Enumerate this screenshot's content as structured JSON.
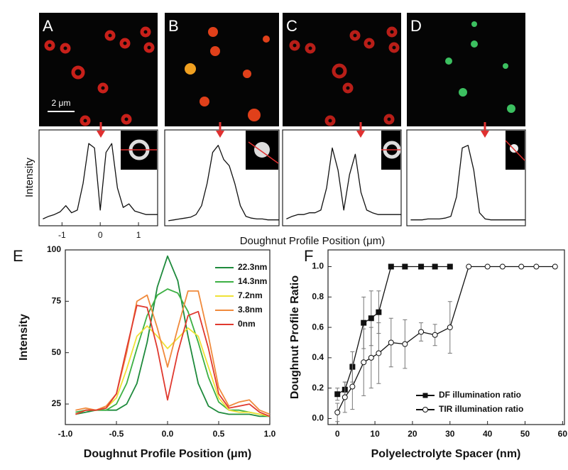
{
  "chart_data": [
    {
      "type": "line",
      "panel": "A",
      "scale_bar": "2 μm",
      "ylabel": "Intensity",
      "xlabel": "Doughnut Profile Position (μm)",
      "x": [
        -1.5,
        -1.35,
        -1.2,
        -1.05,
        -0.9,
        -0.75,
        -0.6,
        -0.45,
        -0.3,
        -0.15,
        0,
        0.15,
        0.3,
        0.45,
        0.6,
        0.75,
        0.9,
        1.05,
        1.2,
        1.35,
        1.5
      ],
      "values": [
        0.05,
        0.08,
        0.1,
        0.13,
        0.2,
        0.12,
        0.15,
        0.45,
        0.9,
        0.85,
        0.15,
        0.8,
        0.9,
        0.4,
        0.18,
        0.22,
        0.14,
        0.12,
        0.1,
        0.1,
        0.1
      ],
      "color": "#111111",
      "xlim": [
        -1.6,
        1.5
      ],
      "ylim": [
        0,
        1
      ],
      "xticks": [
        -1,
        0,
        1
      ]
    },
    {
      "type": "line",
      "panel": "B",
      "x": [
        -1.5,
        -1.35,
        -1.2,
        -1.05,
        -0.9,
        -0.75,
        -0.6,
        -0.45,
        -0.3,
        -0.15,
        0,
        0.15,
        0.3,
        0.45,
        0.6,
        0.75,
        0.9,
        1.05,
        1.2,
        1.35,
        1.5
      ],
      "values": [
        0.03,
        0.04,
        0.05,
        0.06,
        0.07,
        0.1,
        0.2,
        0.45,
        0.8,
        0.88,
        0.72,
        0.65,
        0.45,
        0.2,
        0.08,
        0.06,
        0.05,
        0.05,
        0.04,
        0.04,
        0.04
      ],
      "color": "#111111",
      "xlim": [
        -1.6,
        1.5
      ],
      "ylim": [
        0,
        1
      ]
    },
    {
      "type": "line",
      "panel": "C",
      "x": [
        -1.5,
        -1.35,
        -1.2,
        -1.05,
        -0.9,
        -0.75,
        -0.6,
        -0.45,
        -0.3,
        -0.15,
        0,
        0.15,
        0.3,
        0.45,
        0.6,
        0.75,
        0.9,
        1.05,
        1.2,
        1.35,
        1.5
      ],
      "values": [
        0.05,
        0.08,
        0.1,
        0.1,
        0.12,
        0.12,
        0.15,
        0.4,
        0.85,
        0.6,
        0.15,
        0.55,
        0.78,
        0.35,
        0.15,
        0.12,
        0.1,
        0.1,
        0.1,
        0.1,
        0.1
      ],
      "color": "#111111",
      "xlim": [
        -1.6,
        1.5
      ],
      "ylim": [
        0,
        1
      ]
    },
    {
      "type": "line",
      "panel": "D",
      "x": [
        -1.5,
        -1.35,
        -1.2,
        -1.05,
        -0.9,
        -0.75,
        -0.6,
        -0.45,
        -0.3,
        -0.15,
        0,
        0.15,
        0.3,
        0.45,
        0.6,
        0.75,
        0.9,
        1.05,
        1.2,
        1.35,
        1.5
      ],
      "values": [
        0.04,
        0.04,
        0.04,
        0.05,
        0.05,
        0.05,
        0.06,
        0.08,
        0.3,
        0.85,
        0.88,
        0.6,
        0.12,
        0.05,
        0.04,
        0.04,
        0.04,
        0.04,
        0.04,
        0.04,
        0.04
      ],
      "color": "#111111",
      "xlim": [
        -1.6,
        1.5
      ],
      "ylim": [
        0,
        1
      ]
    },
    {
      "type": "line",
      "panel": "E",
      "xlabel": "Doughnut Profile Position (μm)",
      "ylabel": "Intensity",
      "x": [
        -0.9,
        -0.8,
        -0.7,
        -0.6,
        -0.5,
        -0.4,
        -0.3,
        -0.2,
        -0.1,
        0,
        0.1,
        0.2,
        0.3,
        0.4,
        0.5,
        0.6,
        0.7,
        0.8,
        0.9,
        1.0
      ],
      "series": [
        {
          "name": "22.3nm",
          "color": "#1e8a3c",
          "values": [
            20,
            21,
            22,
            22,
            22,
            25,
            35,
            55,
            82,
            97,
            85,
            58,
            35,
            24,
            21,
            20,
            20,
            20,
            19,
            19
          ]
        },
        {
          "name": "14.3nm",
          "color": "#3cb043",
          "values": [
            21,
            22,
            22,
            22,
            25,
            35,
            52,
            68,
            78,
            81,
            79,
            70,
            55,
            38,
            26,
            22,
            22,
            21,
            20,
            19
          ]
        },
        {
          "name": "7.2nm",
          "color": "#efe236",
          "values": [
            20,
            22,
            22,
            23,
            28,
            42,
            58,
            63,
            58,
            52,
            57,
            62,
            58,
            43,
            28,
            22,
            21,
            21,
            20,
            19
          ]
        },
        {
          "name": "3.8nm",
          "color": "#f08a3c",
          "values": [
            22,
            23,
            22,
            24,
            30,
            50,
            75,
            78,
            62,
            43,
            62,
            80,
            80,
            58,
            33,
            24,
            26,
            27,
            22,
            20
          ]
        },
        {
          "name": "0nm",
          "color": "#e0392f",
          "values": [
            20,
            22,
            22,
            23,
            30,
            52,
            73,
            72,
            52,
            27,
            50,
            68,
            70,
            52,
            30,
            23,
            24,
            25,
            21,
            19
          ]
        }
      ],
      "xlim": [
        -1.0,
        1.0
      ],
      "ylim": [
        15,
        100
      ],
      "xticks": [
        {
          "value": -1.0,
          "label": "-1.0"
        },
        {
          "value": -0.5,
          "label": "-0.5"
        },
        {
          "value": 0,
          "label": "0.0"
        },
        {
          "value": 0.5,
          "label": "0.5"
        },
        {
          "value": 1.0,
          "label": "1.0"
        }
      ],
      "yticks": [
        25,
        50,
        75,
        100
      ]
    },
    {
      "type": "line",
      "panel": "F",
      "xlabel": "Polyelectrolyte Spacer (nm)",
      "ylabel": "Doughnut Profile Ratio",
      "series": [
        {
          "name": "DF illumination ratio",
          "color": "#111111",
          "marker": "square",
          "x": [
            0,
            2,
            4,
            7,
            9,
            11,
            14.3,
            18,
            22.3,
            26,
            30
          ],
          "values": [
            0.16,
            0.19,
            0.34,
            0.63,
            0.66,
            0.7,
            1.0,
            1.0,
            1.0,
            1.0,
            1.0
          ],
          "errors": [
            0.04,
            0.05,
            0.1,
            0.17,
            0.18,
            0.14,
            0,
            0,
            0,
            0,
            0
          ]
        },
        {
          "name": "TIR illumination ratio",
          "color": "#111111",
          "marker": "circle",
          "x": [
            0,
            2,
            4,
            7,
            9,
            11,
            14.3,
            18,
            22.3,
            26,
            30,
            35,
            40,
            44,
            49,
            53,
            58
          ],
          "values": [
            0.04,
            0.14,
            0.21,
            0.37,
            0.4,
            0.43,
            0.5,
            0.49,
            0.57,
            0.55,
            0.6,
            1.0,
            1.0,
            1.0,
            1.0,
            1.0,
            1.0
          ],
          "errors": [
            0.06,
            0.1,
            0.15,
            0.22,
            0.2,
            0.2,
            0.16,
            0.16,
            0.06,
            0.07,
            0.17,
            0,
            0,
            0,
            0,
            0,
            0
          ]
        }
      ],
      "xlim": [
        -2.5,
        60.5
      ],
      "ylim": [
        -0.04,
        1.11
      ],
      "xticks": [
        0,
        10,
        20,
        30,
        40,
        50,
        60
      ],
      "yticks": [
        {
          "value": 0,
          "label": "0.0"
        },
        {
          "value": 0.2,
          "label": "0.2"
        },
        {
          "value": 0.4,
          "label": "0.4"
        },
        {
          "value": 0.6,
          "label": "0.6"
        },
        {
          "value": 0.8,
          "label": "0.8"
        },
        {
          "value": 1.0,
          "label": "1.0"
        }
      ]
    }
  ]
}
